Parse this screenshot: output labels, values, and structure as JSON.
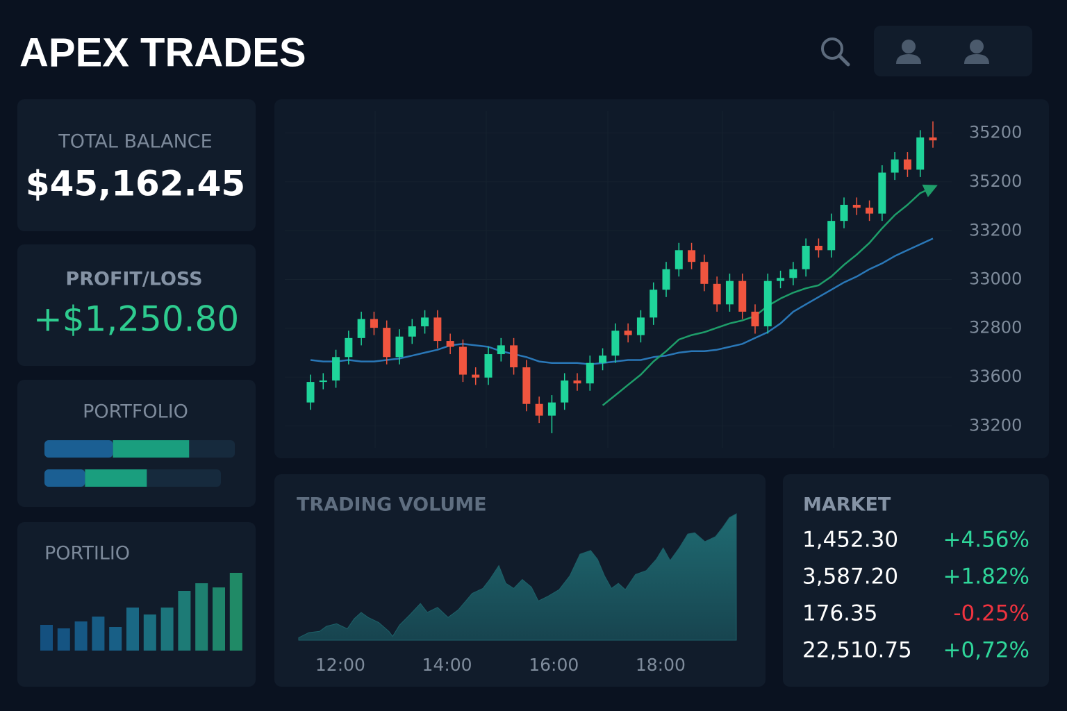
{
  "header": {
    "title": "APEX TRADES"
  },
  "cards": {
    "total_balance": {
      "label": "TOTAL BALANCE",
      "value": "$45,162.45"
    },
    "profit_loss": {
      "label": "PROFIT/LOSS",
      "value": "+$1,250.80"
    }
  },
  "portfolio": {
    "label": "PORTFOLIO",
    "bars": [
      {
        "segments": [
          {
            "value": 36,
            "color": "#1b5f93"
          },
          {
            "value": 40,
            "color": "#1a9e7e"
          }
        ]
      },
      {
        "segments": [
          {
            "value": 23,
            "color": "#1b5f93"
          },
          {
            "value": 35,
            "color": "#1a9e7e"
          }
        ]
      }
    ]
  },
  "market": {
    "title": "MARKET",
    "rows": [
      {
        "price": "1,452.30",
        "change": "+4.56%",
        "color": "#2fd69a"
      },
      {
        "price": "3,587.20",
        "change": "+1.82%",
        "color": "#2fd69a"
      },
      {
        "price": "176.35",
        "change": "-0.25%",
        "color": "#f0333f"
      },
      {
        "price": "22,510.75",
        "change": "+0,72%",
        "color": "#2fd69a"
      }
    ]
  },
  "chart_data": [
    {
      "type": "candlestick",
      "up_color": "#1fd49a",
      "down_color": "#f0553f",
      "grid": true,
      "ylim": [
        33050,
        35350
      ],
      "yticks": [
        33200,
        {
          "value": 33533,
          "label": "33600"
        },
        {
          "value": 33867,
          "label": "32800"
        },
        {
          "value": 34200,
          "label": "33000"
        },
        {
          "value": 34533,
          "label": "33200"
        },
        {
          "value": 34867,
          "label": "35200"
        },
        35200
      ],
      "open": [
        33360,
        33500,
        33510,
        33670,
        33800,
        33930,
        33870,
        33670,
        33810,
        33880,
        33940,
        33780,
        33740,
        33550,
        33530,
        33690,
        33750,
        33600,
        33350,
        33270,
        33360,
        33510,
        33490,
        33630,
        33680,
        33850,
        33820,
        33940,
        34130,
        34270,
        34400,
        34320,
        34170,
        34030,
        34190,
        33980,
        33880,
        34190,
        34210,
        34270,
        34430,
        34400,
        34600,
        34710,
        34690,
        34650,
        34930,
        35020,
        34950,
        35170
      ],
      "high": [
        33550,
        33560,
        33720,
        33850,
        33980,
        33980,
        33920,
        33860,
        33930,
        33990,
        33990,
        33830,
        33790,
        33600,
        33740,
        33800,
        33800,
        33650,
        33400,
        33410,
        33560,
        33560,
        33680,
        33730,
        33900,
        33900,
        33990,
        34180,
        34320,
        34450,
        34450,
        34370,
        34220,
        34240,
        34240,
        34030,
        34240,
        34260,
        34320,
        34480,
        34480,
        34650,
        34760,
        34760,
        34740,
        34980,
        35070,
        35070,
        35220,
        35280
      ],
      "low": [
        33310,
        33450,
        33460,
        33620,
        33750,
        33820,
        33620,
        33620,
        33760,
        33830,
        33730,
        33690,
        33500,
        33480,
        33480,
        33640,
        33550,
        33300,
        33220,
        33150,
        33310,
        33440,
        33440,
        33580,
        33630,
        33770,
        33770,
        33890,
        34080,
        34220,
        34270,
        34120,
        33980,
        33980,
        33930,
        33830,
        33830,
        34140,
        34160,
        34220,
        34350,
        34350,
        34550,
        34640,
        34600,
        34600,
        34880,
        34900,
        34900,
        35100
      ],
      "close": [
        33500,
        33510,
        33670,
        33800,
        33930,
        33870,
        33670,
        33810,
        33880,
        33940,
        33780,
        33740,
        33550,
        33530,
        33690,
        33750,
        33600,
        33350,
        33270,
        33360,
        33510,
        33490,
        33630,
        33680,
        33850,
        33820,
        33940,
        34130,
        34270,
        34400,
        34320,
        34170,
        34030,
        34190,
        33980,
        33880,
        34190,
        34210,
        34270,
        34430,
        34400,
        34600,
        34710,
        34690,
        34650,
        34930,
        35020,
        34950,
        35170,
        35150
      ],
      "lines": [
        {
          "color": "#2a78b8",
          "values": [
            33650,
            33640,
            33640,
            33650,
            33640,
            33640,
            33650,
            33660,
            33680,
            33700,
            33720,
            33750,
            33760,
            33750,
            33740,
            33710,
            33690,
            33670,
            33640,
            33630,
            33630,
            33630,
            33620,
            33630,
            33640,
            33650,
            33650,
            33670,
            33680,
            33700,
            33710,
            33710,
            33720,
            33740,
            33760,
            33800,
            33840,
            33900,
            33980,
            34030,
            34080,
            34130,
            34180,
            34220,
            34270,
            34310,
            34360,
            34400,
            34440,
            34480
          ]
        },
        {
          "color": "#1e9e6a",
          "arrow": true,
          "values": [
            null,
            null,
            null,
            null,
            null,
            null,
            null,
            null,
            null,
            null,
            null,
            null,
            null,
            null,
            null,
            null,
            null,
            null,
            null,
            null,
            null,
            null,
            null,
            33340,
            33410,
            33480,
            33550,
            33640,
            33710,
            33790,
            33820,
            33840,
            33870,
            33900,
            33920,
            33950,
            34020,
            34070,
            34110,
            34140,
            34160,
            34220,
            34300,
            34370,
            34450,
            34550,
            34640,
            34710,
            34790,
            34830
          ]
        }
      ]
    },
    {
      "type": "area",
      "title": "TRADING VOLUME",
      "color": "#1d6068",
      "x": [
        11.22,
        11.41,
        11.61,
        11.74,
        11.93,
        12.13,
        12.26,
        12.39,
        12.52,
        12.72,
        12.91,
        12.98,
        13.11,
        13.3,
        13.5,
        13.63,
        13.82,
        14.02,
        14.21,
        14.47,
        14.67,
        14.8,
        14.97,
        15.1,
        15.25,
        15.41,
        15.58,
        15.71,
        15.9,
        16.1,
        16.3,
        16.49,
        16.69,
        16.82,
        16.95,
        17.08,
        17.21,
        17.34,
        17.53,
        17.73,
        17.92,
        18.05,
        18.18,
        18.35,
        18.51,
        18.64,
        18.83,
        19.03,
        19.16,
        19.29,
        19.42
      ],
      "values": [
        2,
        6,
        7,
        11,
        13,
        9,
        17,
        22,
        18,
        14,
        7,
        3,
        12,
        20,
        29,
        22,
        26,
        18,
        24,
        37,
        41,
        48,
        59,
        45,
        41,
        48,
        42,
        31,
        35,
        40,
        51,
        68,
        71,
        64,
        51,
        41,
        45,
        40,
        52,
        55,
        64,
        73,
        63,
        73,
        84,
        85,
        78,
        82,
        89,
        97,
        100
      ],
      "xlim": [
        11.22,
        19.42
      ],
      "ylim": [
        0,
        100
      ],
      "xticks": [
        {
          "value": 12,
          "label": "12:00"
        },
        {
          "value": 14,
          "label": "14:00"
        },
        {
          "value": 16,
          "label": "16:00"
        },
        {
          "value": 18,
          "label": "18:00"
        }
      ]
    },
    {
      "type": "bar",
      "title": "PORTILIO",
      "ylim": [
        0,
        120
      ],
      "values": [
        37,
        32,
        42,
        49,
        34,
        62,
        52,
        62,
        86,
        97,
        91,
        112
      ],
      "colors": [
        "#14507f",
        "#155482",
        "#165884",
        "#175c85",
        "#185f86",
        "#1a6884",
        "#1b6f80",
        "#1c757c",
        "#1d7b76",
        "#1e8070",
        "#1f856b",
        "#208a66"
      ]
    }
  ]
}
